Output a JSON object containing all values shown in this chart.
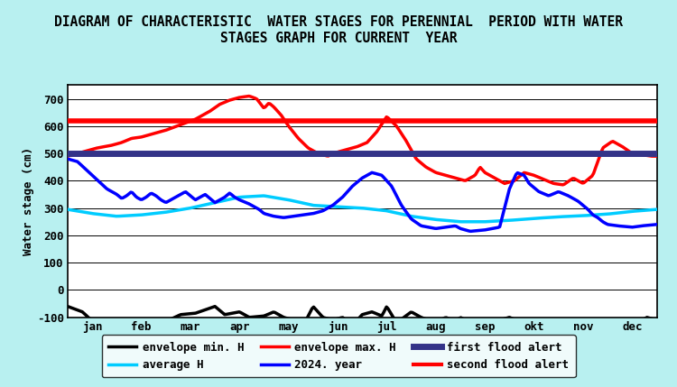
{
  "title_line1": "DIAGRAM OF CHARACTERISTIC  WATER STAGES FOR PERENNIAL  PERIOD WITH WATER",
  "title_line2": "STAGES GRAPH FOR CURRENT  YEAR",
  "ylabel": "Water stage (cm)",
  "xlabel_ticks": [
    "jan",
    "feb",
    "mar",
    "apr",
    "may",
    "jun",
    "jul",
    "aug",
    "sep",
    "okt",
    "nov",
    "dec"
  ],
  "ylim": [
    -100,
    750
  ],
  "yticks": [
    -100,
    0,
    100,
    200,
    300,
    400,
    500,
    600,
    700
  ],
  "background_color": "#b8f0f0",
  "plot_bg": "#ffffff",
  "first_flood_alert": 500,
  "second_flood_alert": 620,
  "envelope_min_color": "#000000",
  "envelope_max_color": "#ff0000",
  "average_color": "#00ccff",
  "year2024_color": "#0000ff",
  "first_flood_color": "#333388",
  "second_flood_color": "#ff0000",
  "envelope_min_lw": 2.5,
  "envelope_max_lw": 2.5,
  "average_lw": 2.5,
  "year2024_lw": 2.5,
  "first_alert_lw": 5,
  "second_alert_lw": 4,
  "legend_fontsize": 9,
  "title_fontsize": 10.5
}
